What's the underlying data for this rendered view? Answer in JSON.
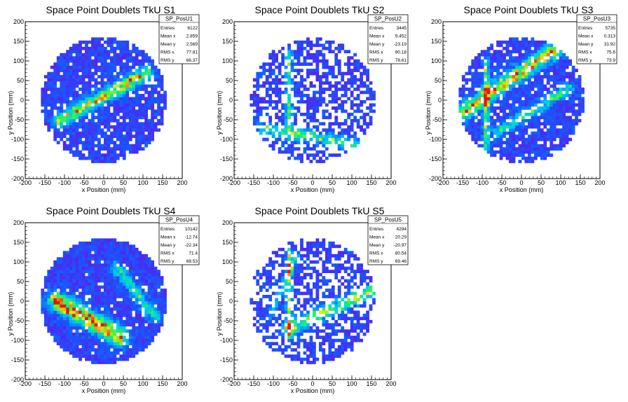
{
  "chart_data": [
    {
      "type": "heatmap",
      "title": "Space Point Doublets TkU S1",
      "xlabel": "x Position (mm)",
      "ylabel": "y Position (mm)",
      "xlim": [
        -200,
        200
      ],
      "ylim": [
        -200,
        200
      ],
      "xticks": [
        "-200",
        "-150",
        "-100",
        "-50",
        "0",
        "50",
        "100",
        "150",
        "200"
      ],
      "yticks": [
        "-200",
        "-150",
        "-100",
        "-50",
        "0",
        "50",
        "100",
        "150",
        "200"
      ],
      "stats": {
        "name": "SP_PosU1",
        "rows": [
          [
            "Entries",
            "6122"
          ],
          [
            "Mean x",
            "2.859"
          ],
          [
            "Mean y",
            "2.569"
          ],
          [
            "RMS x",
            "77.81"
          ],
          [
            "RMS y",
            "66.37"
          ]
        ]
      },
      "pattern": {
        "seed": 11,
        "holes": 0.12,
        "bands": [
          {
            "x1": -110,
            "y1": -50,
            "x2": 110,
            "y2": 70,
            "w": 12,
            "amp": 0.7
          }
        ]
      }
    },
    {
      "type": "heatmap",
      "title": "Space Point Doublets TkU S2",
      "xlabel": "x Position (mm)",
      "ylabel": "y Position (mm)",
      "xlim": [
        -200,
        200
      ],
      "ylim": [
        -200,
        200
      ],
      "xticks": [
        "-200",
        "-150",
        "-100",
        "-50",
        "0",
        "50",
        "100",
        "150",
        "200"
      ],
      "yticks": [
        "-200",
        "-150",
        "-100",
        "-50",
        "0",
        "50",
        "100",
        "150",
        "200"
      ],
      "stats": {
        "name": "SP_PosU2",
        "rows": [
          [
            "Entries",
            "3445"
          ],
          [
            "Mean x",
            "9.452"
          ],
          [
            "Mean y",
            "-23.19"
          ],
          [
            "RMS x",
            "90.18"
          ],
          [
            "RMS y",
            "78.61"
          ]
        ]
      },
      "pattern": {
        "seed": 23,
        "holes": 0.42,
        "bands": [
          {
            "x1": -130,
            "y1": -70,
            "x2": 150,
            "y2": -120,
            "w": 10,
            "amp": 0.55
          },
          {
            "x1": -60,
            "y1": 120,
            "x2": -60,
            "y2": -60,
            "w": 6,
            "amp": 0.5
          }
        ]
      }
    },
    {
      "type": "heatmap",
      "title": "Space Point Doublets TkU S3",
      "xlabel": "x Position (mm)",
      "ylabel": "y Position (mm)",
      "xlim": [
        -200,
        200
      ],
      "ylim": [
        -200,
        200
      ],
      "xticks": [
        "-200",
        "-150",
        "-100",
        "-50",
        "0",
        "50",
        "100",
        "150",
        "200"
      ],
      "yticks": [
        "-200",
        "-150",
        "-100",
        "-50",
        "0",
        "50",
        "100",
        "150",
        "200"
      ],
      "stats": {
        "name": "SP_PosU3",
        "rows": [
          [
            "Entries",
            "5735"
          ],
          [
            "Mean x",
            "0.313"
          ],
          [
            "Mean y",
            "31.92"
          ],
          [
            "RMS x",
            "75.6"
          ],
          [
            "RMS y",
            "73.9"
          ]
        ]
      },
      "pattern": {
        "seed": 37,
        "holes": 0.15,
        "bands": [
          {
            "x1": -150,
            "y1": -30,
            "x2": 100,
            "y2": 140,
            "w": 14,
            "amp": 0.75
          },
          {
            "x1": -90,
            "y1": 100,
            "x2": -90,
            "y2": -120,
            "w": 6,
            "amp": 0.55
          },
          {
            "x1": -60,
            "y1": -80,
            "x2": 120,
            "y2": 30,
            "w": 10,
            "amp": 0.45
          }
        ]
      }
    },
    {
      "type": "heatmap",
      "title": "Space Point Doublets TkU S4",
      "xlabel": "x Position (mm)",
      "ylabel": "y Position (mm)",
      "xlim": [
        -200,
        200
      ],
      "ylim": [
        -200,
        200
      ],
      "xticks": [
        "-200",
        "-150",
        "-100",
        "-50",
        "0",
        "50",
        "100",
        "150",
        "200"
      ],
      "yticks": [
        "-200",
        "-150",
        "-100",
        "-50",
        "0",
        "50",
        "100",
        "150",
        "200"
      ],
      "stats": {
        "name": "SP_PosU4",
        "rows": [
          [
            "Entries",
            "10142"
          ],
          [
            "Mean x",
            "-12.74"
          ],
          [
            "Mean y",
            "-22.34"
          ],
          [
            "RMS x",
            "71.4"
          ],
          [
            "RMS y",
            "68.53"
          ]
        ]
      },
      "pattern": {
        "seed": 41,
        "holes": 0.06,
        "bands": [
          {
            "x1": -120,
            "y1": 0,
            "x2": 40,
            "y2": -90,
            "w": 16,
            "amp": 0.9
          },
          {
            "x1": 30,
            "y1": 90,
            "x2": 130,
            "y2": -40,
            "w": 10,
            "amp": 0.45
          }
        ]
      }
    },
    {
      "type": "heatmap",
      "title": "Space Point Doublets TkU S5",
      "xlabel": "x Position (mm)",
      "ylabel": "y Position (mm)",
      "xlim": [
        -200,
        200
      ],
      "ylim": [
        -200,
        200
      ],
      "xticks": [
        "-200",
        "-150",
        "-100",
        "-50",
        "0",
        "50",
        "100",
        "150",
        "200"
      ],
      "yticks": [
        "-200",
        "-150",
        "-100",
        "-50",
        "0",
        "50",
        "100",
        "150",
        "200"
      ],
      "stats": {
        "name": "SP_PosU5",
        "rows": [
          [
            "Entries",
            "4294"
          ],
          [
            "Mean x",
            "20.29"
          ],
          [
            "Mean y",
            "-20.97"
          ],
          [
            "RMS x",
            "80.54"
          ],
          [
            "RMS y",
            "69.46"
          ]
        ]
      },
      "pattern": {
        "seed": 53,
        "holes": 0.38,
        "bands": [
          {
            "x1": -60,
            "y1": -70,
            "x2": 160,
            "y2": 30,
            "w": 12,
            "amp": 0.6
          },
          {
            "x1": -60,
            "y1": 130,
            "x2": -60,
            "y2": -90,
            "w": 6,
            "amp": 0.55
          },
          {
            "x1": -110,
            "y1": -40,
            "x2": -40,
            "y2": 120,
            "w": 6,
            "amp": 0.35
          }
        ]
      }
    }
  ]
}
